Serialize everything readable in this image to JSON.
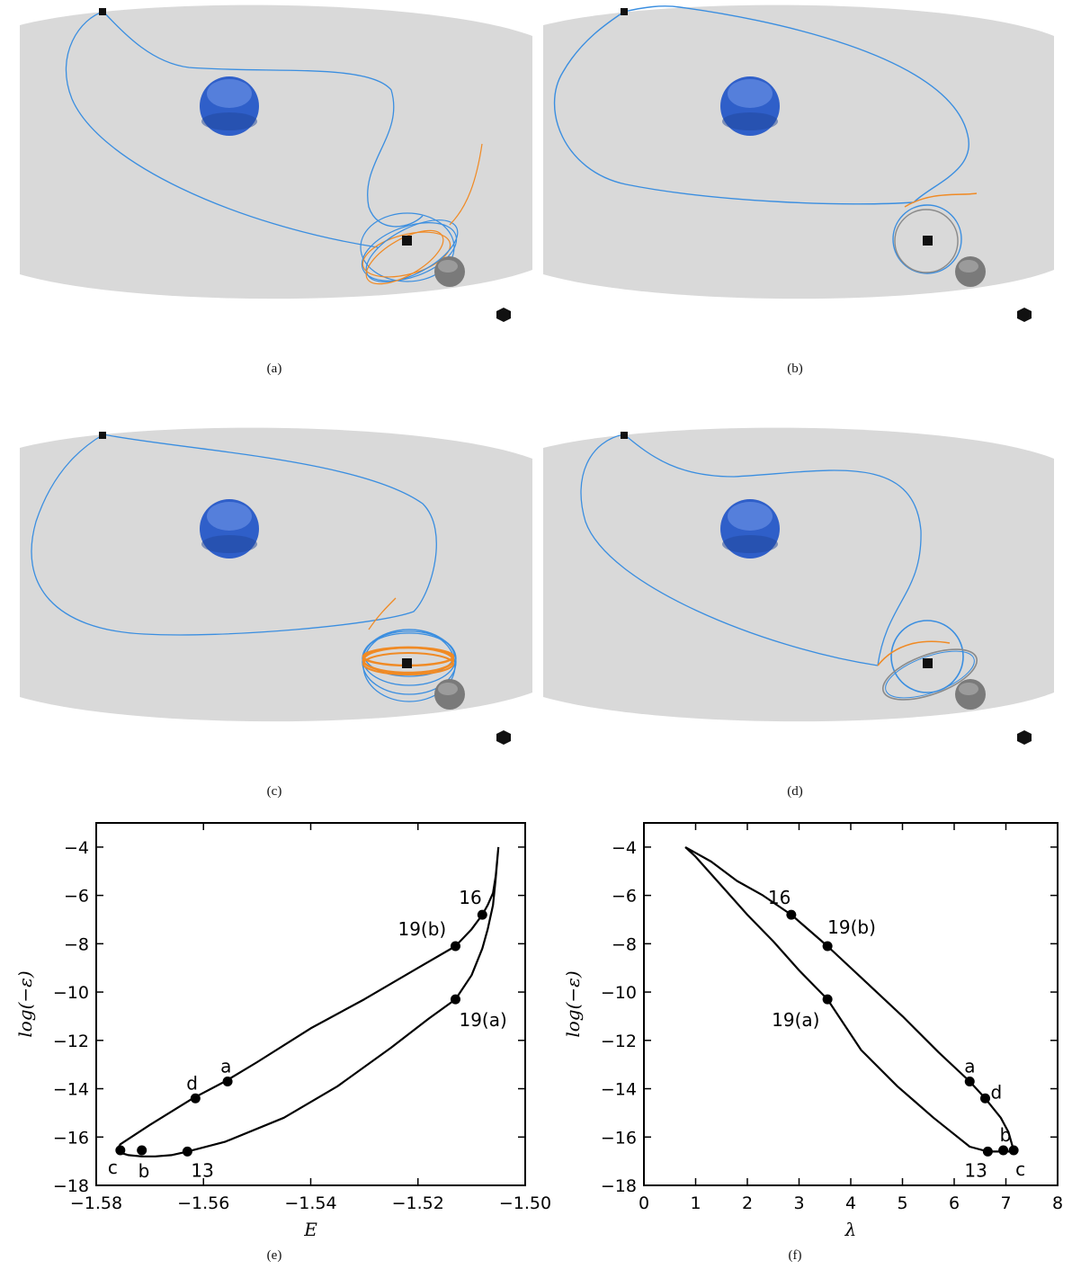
{
  "panels": [
    {
      "caption": "(a)"
    },
    {
      "caption": "(b)"
    },
    {
      "caption": "(c)"
    },
    {
      "caption": "(d)"
    }
  ],
  "colors": {
    "plane": "#d9d9d9",
    "trajectory_blue": "#3a8ee0",
    "trajectory_orange": "#f08a24",
    "trajectory_gray": "#8a8a8a",
    "earth": "#2f5fc9",
    "moon": "#7a7a7a",
    "marker": "#111111"
  },
  "chart_data": [
    {
      "type": "line",
      "caption": "(e)",
      "xlabel": "E",
      "ylabel": "log(−ε)",
      "xlim": [
        -1.58,
        -1.5
      ],
      "ylim": [
        -18,
        -3
      ],
      "xticks": [
        -1.58,
        -1.56,
        -1.54,
        -1.52,
        -1.5
      ],
      "xtick_labels": [
        "−1.58",
        "−1.56",
        "−1.54",
        "−1.52",
        "−1.50"
      ],
      "yticks": [
        -18,
        -16,
        -14,
        -12,
        -10,
        -8,
        -6,
        -4
      ],
      "ytick_labels": [
        "−18",
        "−16",
        "−14",
        "−12",
        "−10",
        "−8",
        "−6",
        "−4"
      ],
      "curve": {
        "x": [
          -1.505,
          -1.5055,
          -1.506,
          -1.507,
          -1.508,
          -1.51,
          -1.513,
          -1.52,
          -1.53,
          -1.54,
          -1.55,
          -1.556,
          -1.562,
          -1.57,
          -1.5755,
          -1.5762,
          -1.5755,
          -1.574,
          -1.5715,
          -1.569,
          -1.566,
          -1.563,
          -1.556,
          -1.545,
          -1.535,
          -1.525,
          -1.518,
          -1.513,
          -1.51,
          -1.508,
          -1.507,
          -1.506,
          -1.5055,
          -1.505
        ],
        "y": [
          -4,
          -5.2,
          -5.9,
          -6.4,
          -6.8,
          -7.4,
          -8.1,
          -9.0,
          -10.3,
          -11.5,
          -12.9,
          -13.7,
          -14.4,
          -15.5,
          -16.3,
          -16.55,
          -16.65,
          -16.75,
          -16.8,
          -16.8,
          -16.75,
          -16.6,
          -16.2,
          -15.2,
          -13.9,
          -12.3,
          -11.1,
          -10.3,
          -9.3,
          -8.2,
          -7.4,
          -6.4,
          -5.3,
          -4
        ]
      },
      "points": [
        {
          "label": "16",
          "x": -1.508,
          "y": -6.8
        },
        {
          "label": "19(b)",
          "x": -1.513,
          "y": -8.1
        },
        {
          "label": "19(a)",
          "x": -1.513,
          "y": -10.3
        },
        {
          "label": "a",
          "x": -1.5555,
          "y": -13.7
        },
        {
          "label": "d",
          "x": -1.5615,
          "y": -14.4
        },
        {
          "label": "c",
          "x": -1.5755,
          "y": -16.55
        },
        {
          "label": "b",
          "x": -1.5715,
          "y": -16.55
        },
        {
          "label": "13",
          "x": -1.563,
          "y": -16.6
        }
      ]
    },
    {
      "type": "line",
      "caption": "(f)",
      "xlabel": "λ",
      "ylabel": "log(−ε)",
      "xlim": [
        0,
        8
      ],
      "ylim": [
        -18,
        -3
      ],
      "xticks": [
        0,
        1,
        2,
        3,
        4,
        5,
        6,
        7,
        8
      ],
      "xtick_labels": [
        "0",
        "1",
        "2",
        "3",
        "4",
        "5",
        "6",
        "7",
        "8"
      ],
      "yticks": [
        -18,
        -16,
        -14,
        -12,
        -10,
        -8,
        -6,
        -4
      ],
      "ytick_labels": [
        "−18",
        "−16",
        "−14",
        "−12",
        "−10",
        "−8",
        "−6",
        "−4"
      ],
      "curve": {
        "x": [
          0.8,
          1.3,
          1.8,
          2.3,
          2.85,
          3.55,
          4.3,
          5.0,
          5.7,
          6.3,
          6.6,
          6.9,
          7.05,
          7.15,
          7.1,
          6.95,
          6.65,
          6.3,
          5.6,
          4.9,
          4.2,
          3.55,
          3.0,
          2.5,
          2.0,
          1.5,
          1.0,
          0.8
        ],
        "y": [
          -4,
          -4.6,
          -5.4,
          -6.0,
          -6.8,
          -8.1,
          -9.6,
          -11.0,
          -12.5,
          -13.7,
          -14.4,
          -15.2,
          -15.8,
          -16.55,
          -16.6,
          -16.6,
          -16.6,
          -16.4,
          -15.2,
          -13.9,
          -12.4,
          -10.3,
          -9.1,
          -7.9,
          -6.8,
          -5.6,
          -4.4,
          -4
        ]
      },
      "points": [
        {
          "label": "16",
          "x": 2.85,
          "y": -6.8
        },
        {
          "label": "19(b)",
          "x": 3.55,
          "y": -8.1
        },
        {
          "label": "19(a)",
          "x": 3.55,
          "y": -10.3
        },
        {
          "label": "a",
          "x": 6.3,
          "y": -13.7
        },
        {
          "label": "d",
          "x": 6.6,
          "y": -14.4
        },
        {
          "label": "b",
          "x": 6.95,
          "y": -16.55
        },
        {
          "label": "c",
          "x": 7.15,
          "y": -16.55
        },
        {
          "label": "13",
          "x": 6.65,
          "y": -16.6
        }
      ]
    }
  ]
}
